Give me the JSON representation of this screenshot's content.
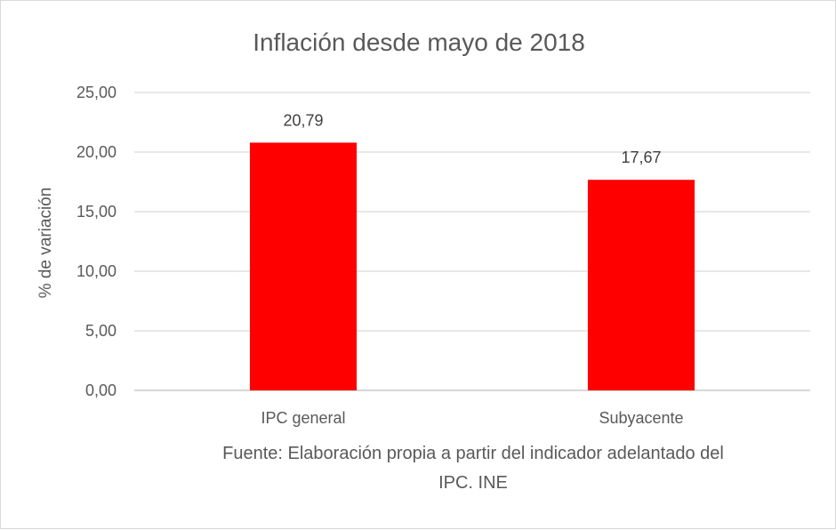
{
  "chart_data": {
    "type": "bar",
    "title": "Inflación desde mayo de 2018",
    "ylabel": "% de variación",
    "xlabel": "",
    "categories": [
      "IPC general",
      "Subyacente"
    ],
    "values": [
      20.79,
      17.67
    ],
    "data_labels": [
      "20,79",
      "17,67"
    ],
    "ylim": [
      0,
      25
    ],
    "yticks": [
      0,
      5,
      10,
      15,
      20,
      25
    ],
    "ytick_labels": [
      "0,00",
      "5,00",
      "10,00",
      "15,00",
      "20,00",
      "25,00"
    ],
    "bar_color": "#ff0000",
    "grid": true,
    "legend": "none"
  },
  "source_note": {
    "line1": "Fuente: Elaboración propia a partir del indicador adelantado del",
    "line2": "IPC. INE"
  }
}
